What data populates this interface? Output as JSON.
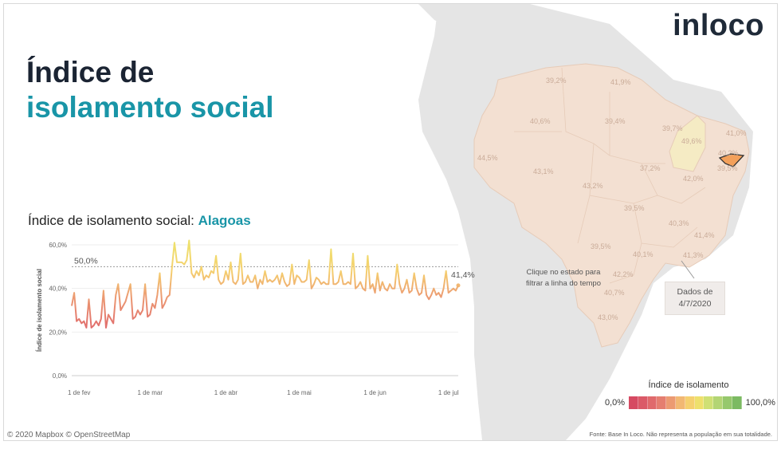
{
  "logo": "inloco",
  "title": {
    "line1": "Índice de",
    "line2": "isolamento social"
  },
  "chart_heading": {
    "prefix": "Índice de isolamento social: ",
    "state": "Alagoas"
  },
  "map": {
    "hint": "Clique no estado para filtrar a linha do tempo",
    "date_label": "Dados de 4/7/2020",
    "state_values": [
      "39,2%",
      "41,9%",
      "40,6%",
      "39,4%",
      "39,7%",
      "41,0%",
      "49,6%",
      "40,2%",
      "44,5%",
      "43,1%",
      "37,2%",
      "39,5%",
      "42,0%",
      "43,2%",
      "39,5%",
      "40,3%",
      "41,4%",
      "39,5%",
      "40,1%",
      "41,3%",
      "42,2%",
      "40,7%",
      "43,0%"
    ],
    "land_color": "#e8e8e8",
    "brazil_fill": "#f3e0d2",
    "highlight_fill": "#f3a05a"
  },
  "legend": {
    "title": "Índice de isolamento",
    "min_label": "0,0%",
    "max_label": "100,0%",
    "colors": [
      "#d64a62",
      "#db5a68",
      "#e06a6c",
      "#e57e70",
      "#ec9a72",
      "#f2b873",
      "#f5d06f",
      "#eee06c",
      "#cfe074",
      "#b3d574",
      "#96c86c",
      "#7cba62"
    ]
  },
  "credits": "© 2020 Mapbox  © OpenStreetMap",
  "source": "Fonte: Base In Loco. Não representa a população em sua totalidade.",
  "chart_data": {
    "type": "line",
    "ylabel": "Índice de isolamento social",
    "y_ticks": [
      "0,0%",
      "20,0%",
      "40,0%",
      "60,0%"
    ],
    "ylim": [
      0,
      60
    ],
    "x_tick_labels": [
      "1 de fev",
      "1 de mar",
      "1 de abr",
      "1 de mai",
      "1 de jun",
      "1 de jul"
    ],
    "x_tick_days": [
      3,
      32,
      63,
      93,
      124,
      154
    ],
    "reference_line": {
      "value": 50,
      "label": "50,0%"
    },
    "last_value_label": "41,4%",
    "grid": true,
    "series": [
      {
        "values": [
          32,
          38,
          25,
          26,
          24,
          25,
          22,
          35,
          22,
          23,
          25,
          23,
          26,
          39,
          22,
          28,
          26,
          24,
          37,
          42,
          30,
          32,
          34,
          38,
          42,
          26,
          27,
          30,
          28,
          30,
          42,
          27,
          28,
          33,
          31,
          37,
          47,
          31,
          33,
          36,
          37,
          50,
          61,
          52,
          52,
          52,
          51,
          53,
          62,
          47,
          45,
          48,
          46,
          50,
          44,
          46,
          45,
          48,
          47,
          55,
          44,
          42,
          43,
          48,
          44,
          52,
          43,
          42,
          44,
          56,
          42,
          43,
          46,
          43,
          43,
          46,
          40,
          44,
          42,
          48,
          43,
          44,
          43,
          44,
          46,
          42,
          47,
          43,
          41,
          42,
          51,
          42,
          46,
          45,
          43,
          43,
          44,
          53,
          40,
          42,
          45,
          44,
          42,
          43,
          42,
          42,
          58,
          42,
          42,
          43,
          48,
          42,
          42,
          43,
          42,
          56,
          40,
          41,
          43,
          40,
          39,
          55,
          40,
          42,
          38,
          47,
          39,
          43,
          40,
          39,
          42,
          40,
          40,
          51,
          42,
          38,
          40,
          44,
          38,
          39,
          47,
          40,
          37,
          38,
          46,
          37,
          35,
          37,
          40,
          37,
          38,
          36,
          40,
          48,
          38,
          39,
          40,
          39,
          41.4
        ]
      }
    ]
  }
}
